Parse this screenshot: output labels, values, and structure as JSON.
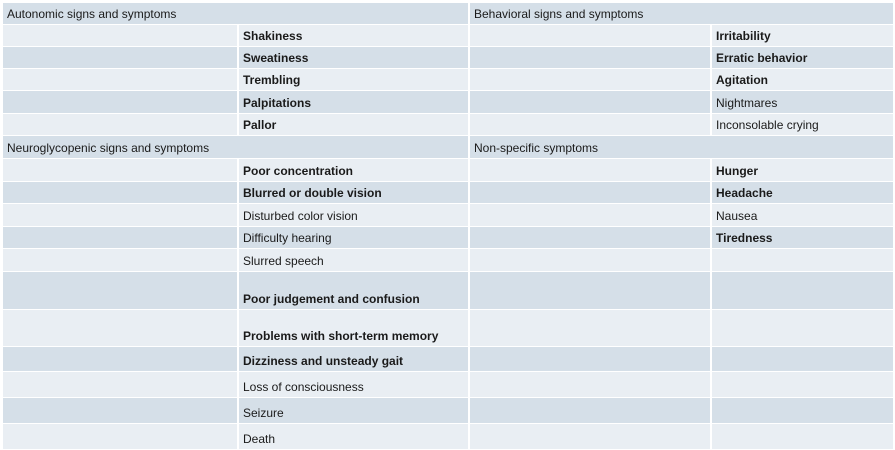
{
  "sections": [
    {
      "title": "Autonomic signs and symptoms",
      "items": [
        {
          "text": "Shakiness",
          "bold": true
        },
        {
          "text": "Sweatiness",
          "bold": true
        },
        {
          "text": "Trembling",
          "bold": true
        },
        {
          "text": "Palpitations",
          "bold": true
        },
        {
          "text": "Pallor",
          "bold": true
        }
      ]
    },
    {
      "title": "Behavioral signs and symptoms",
      "items": [
        {
          "text": "Irritability",
          "bold": true
        },
        {
          "text": "Erratic behavior",
          "bold": true
        },
        {
          "text": "Agitation",
          "bold": true
        },
        {
          "text": "Nightmares",
          "bold": false
        },
        {
          "text": "Inconsolable crying",
          "bold": false
        }
      ]
    },
    {
      "title": "Neuroglycopenic signs and symptoms",
      "items": [
        {
          "text": "Poor concentration",
          "bold": true
        },
        {
          "text": "Blurred or double vision",
          "bold": true
        },
        {
          "text": "Disturbed color vision",
          "bold": false
        },
        {
          "text": "Difficulty hearing",
          "bold": false
        },
        {
          "text": "Slurred speech",
          "bold": false
        },
        {
          "text": "Poor judgement and confusion",
          "bold": true
        },
        {
          "text": "Problems with short-term memory",
          "bold": true
        },
        {
          "text": "Dizziness and unsteady gait",
          "bold": true
        },
        {
          "text": "Loss of consciousness",
          "bold": false
        },
        {
          "text": "Seizure",
          "bold": false
        },
        {
          "text": "Death",
          "bold": false
        }
      ]
    },
    {
      "title": "Non-specific symptoms",
      "items": [
        {
          "text": "Hunger",
          "bold": true
        },
        {
          "text": "Headache",
          "bold": true
        },
        {
          "text": "Nausea",
          "bold": false
        },
        {
          "text": "Tiredness",
          "bold": true
        }
      ]
    }
  ]
}
